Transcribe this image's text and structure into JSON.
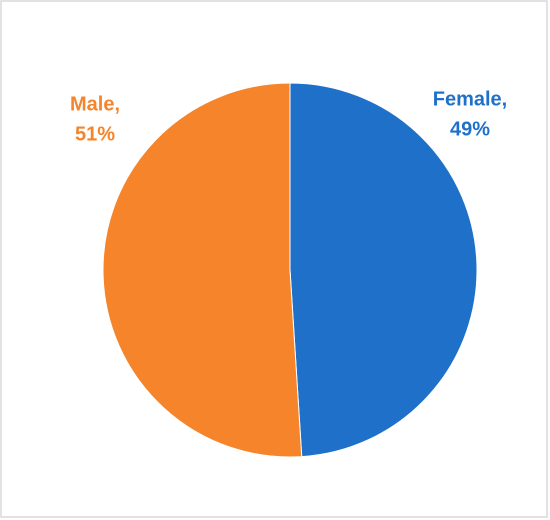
{
  "chart_data": {
    "type": "pie",
    "categories": [
      "Female,",
      "Male,"
    ],
    "values": [
      49,
      51
    ],
    "value_labels": [
      "49%",
      "51%"
    ],
    "colors": [
      "#1f70c8",
      "#f5842a"
    ]
  }
}
